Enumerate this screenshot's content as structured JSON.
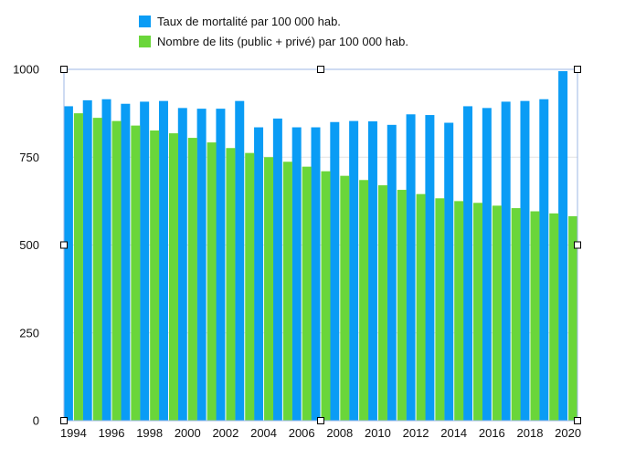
{
  "chart_data": {
    "type": "bar",
    "title": "",
    "xlabel": "",
    "ylabel": "",
    "ylim": [
      0,
      1000
    ],
    "yticks": [
      0,
      250,
      500,
      750,
      1000
    ],
    "categories": [
      "1994",
      "1995",
      "1996",
      "1997",
      "1998",
      "1999",
      "2000",
      "2001",
      "2002",
      "2003",
      "2004",
      "2005",
      "2006",
      "2007",
      "2008",
      "2009",
      "2010",
      "2011",
      "2012",
      "2013",
      "2014",
      "2015",
      "2016",
      "2017",
      "2018",
      "2019",
      "2020"
    ],
    "x_tick_labels": [
      "1994",
      "1996",
      "1998",
      "2000",
      "2002",
      "2004",
      "2006",
      "2008",
      "2010",
      "2012",
      "2014",
      "2016",
      "2018",
      "2020"
    ],
    "series": [
      {
        "name": "Taux de mortalité par 100 000 hab.",
        "color": "#0a9cf5",
        "values": [
          895,
          912,
          915,
          902,
          908,
          910,
          890,
          888,
          888,
          910,
          835,
          860,
          835,
          835,
          850,
          853,
          852,
          842,
          872,
          870,
          848,
          895,
          890,
          908,
          910,
          915,
          995
        ]
      },
      {
        "name": "Nombre de lits (public + privé) par 100 000 hab.",
        "color": "#6ad63a",
        "values": [
          875,
          862,
          853,
          840,
          826,
          818,
          805,
          792,
          776,
          762,
          750,
          737,
          723,
          710,
          697,
          685,
          670,
          657,
          645,
          633,
          625,
          620,
          612,
          605,
          596,
          590,
          582
        ]
      }
    ],
    "legend_position": "top",
    "grid": true
  }
}
